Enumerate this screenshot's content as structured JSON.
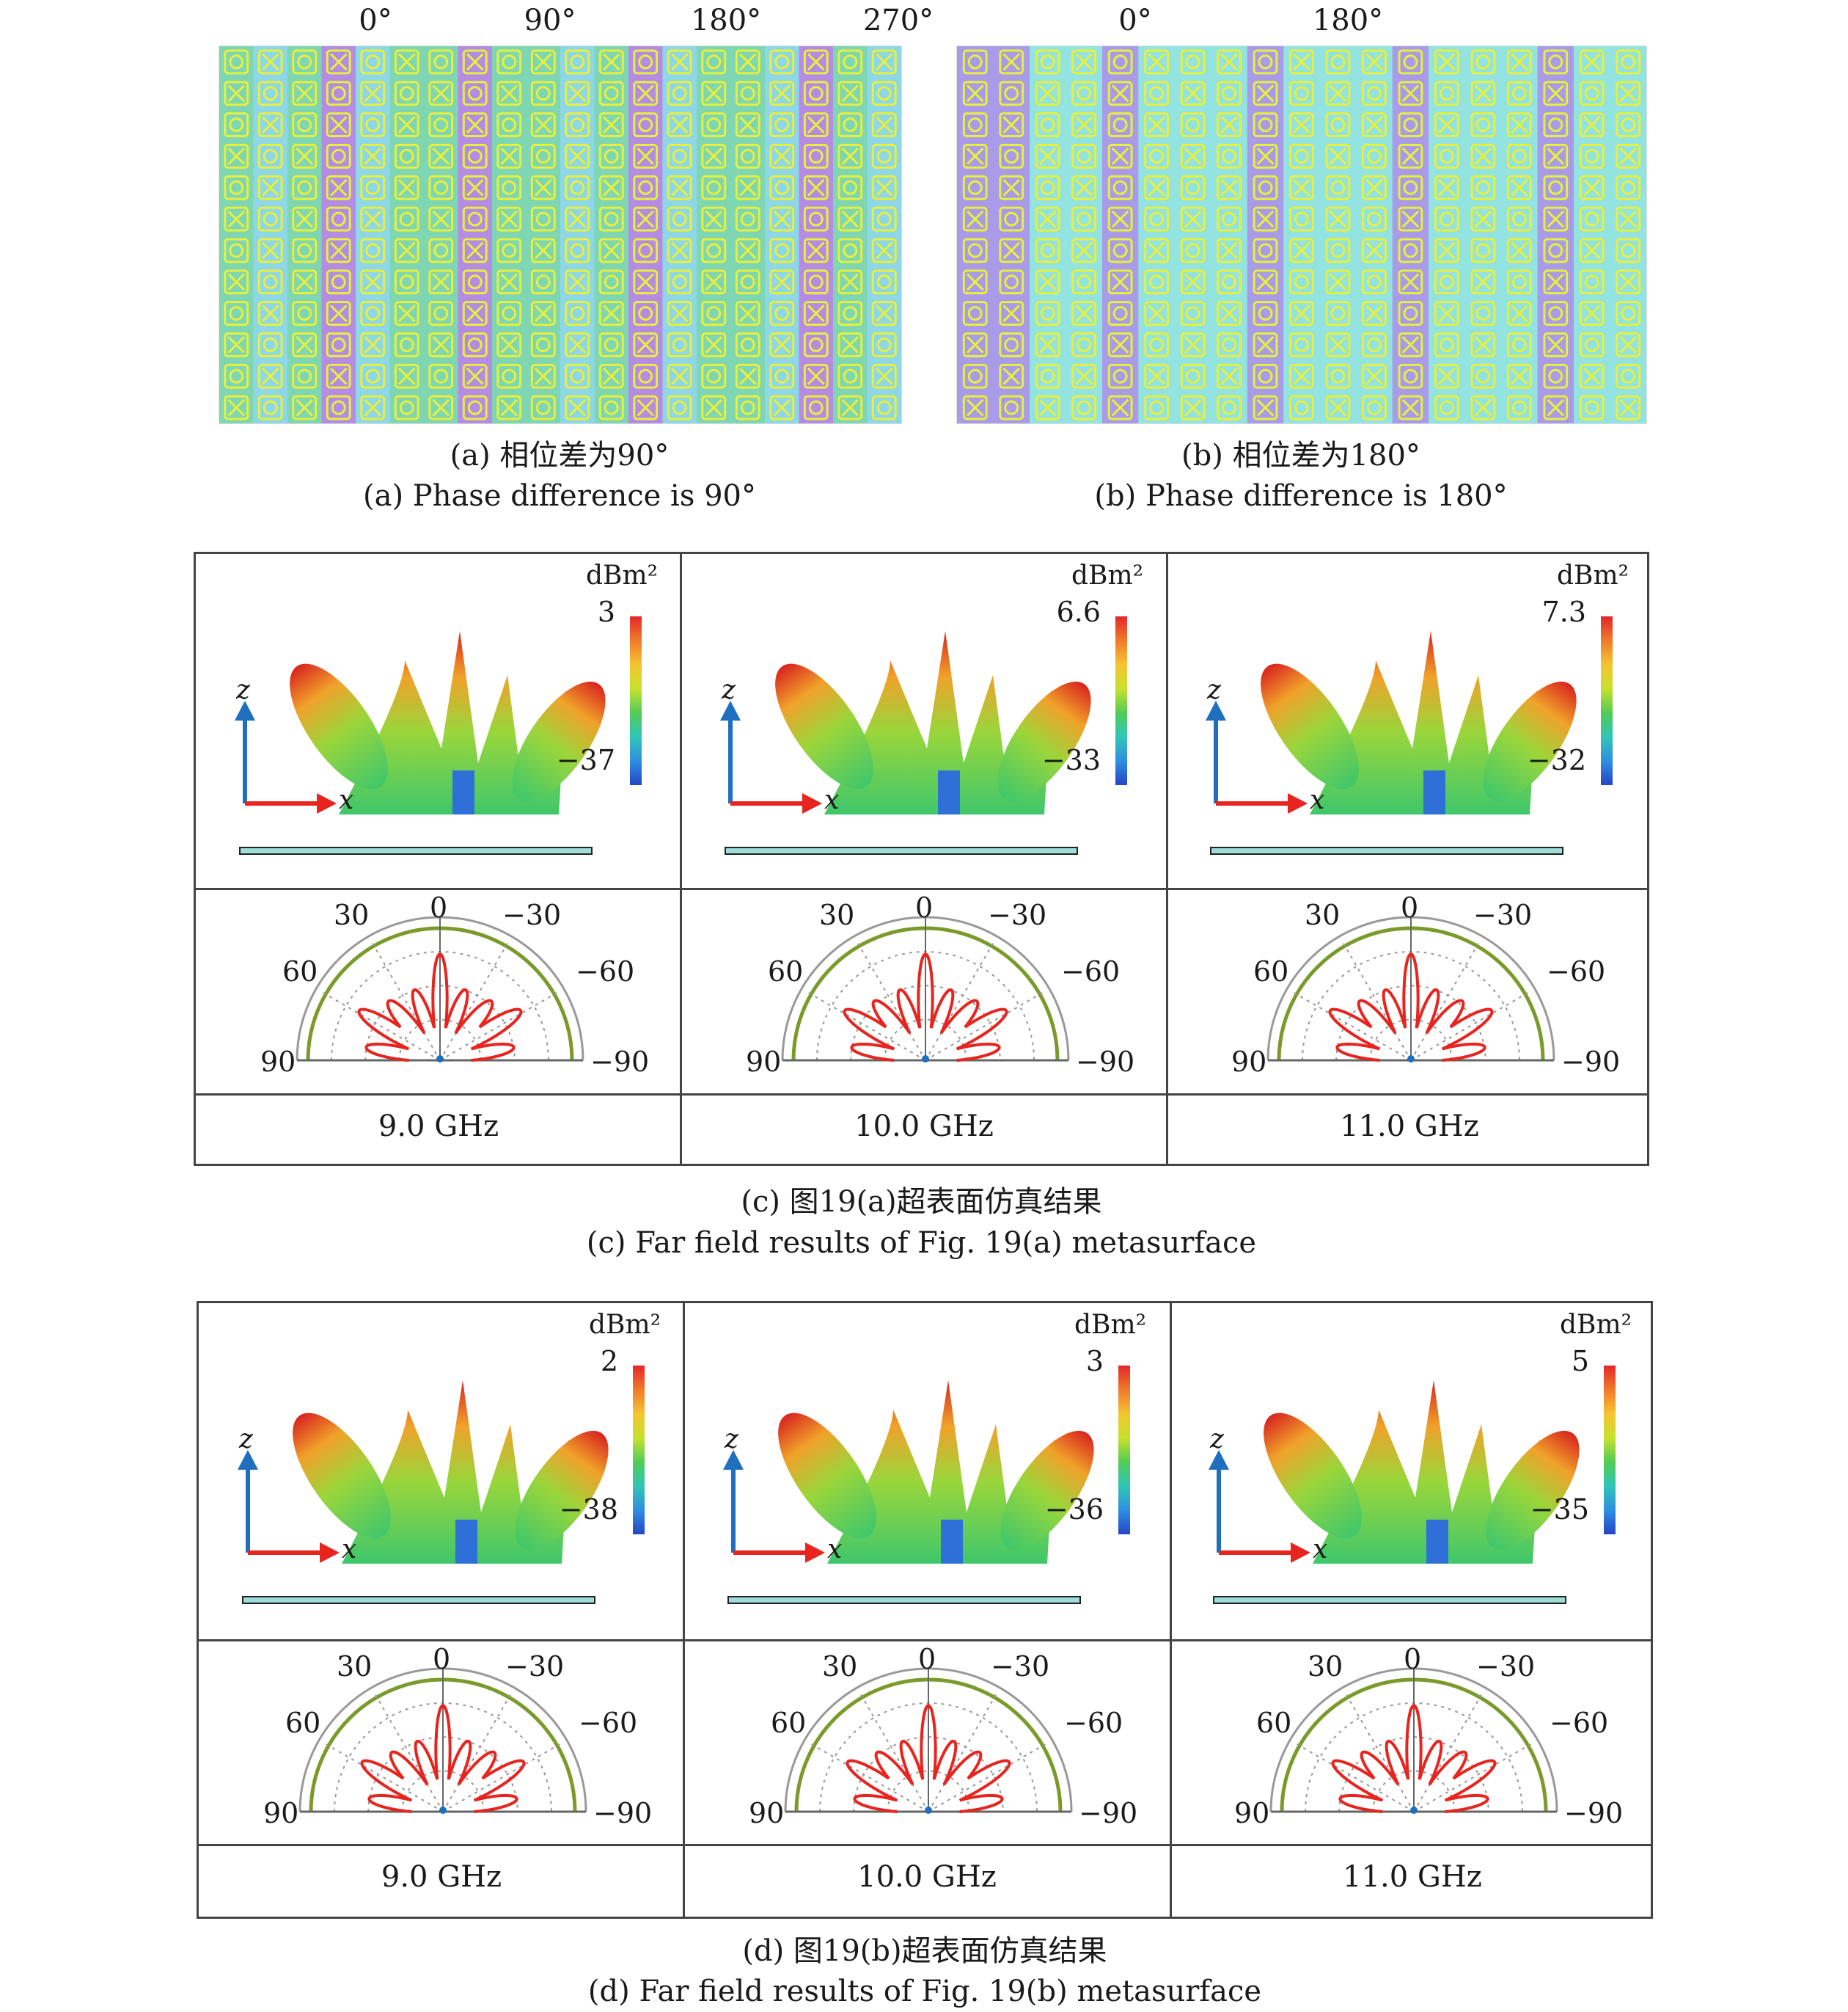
{
  "figure_a": {
    "phase_labels": [
      "0°",
      "90°",
      "180°",
      "270°"
    ],
    "caption_cn": "(a) 相位差为90°",
    "caption_en": "(a) Phase difference is 90°",
    "colors": {
      "background": "#7fd6b2",
      "stripe_purple": "#b58be3",
      "pattern": "#e8f03a",
      "cell_blue": "#8ed7e6"
    }
  },
  "figure_b": {
    "phase_labels": [
      "0°",
      "180°"
    ],
    "caption_cn": "(b) 相位差为180°",
    "caption_en": "(b) Phase difference is 180°",
    "colors": {
      "background": "#93e4e0",
      "stripe_purple": "#a99be8",
      "pattern": "#e8f03a"
    }
  },
  "figure_c": {
    "caption_cn": "(c) 图19(a)超表面仿真结果",
    "caption_en": "(c) Far field results of Fig. 19(a) metasurface",
    "panels": [
      {
        "frequency": "9.0 GHz",
        "unit": "dBm²",
        "scale_max": "3",
        "scale_min": "−37"
      },
      {
        "frequency": "10.0 GHz",
        "unit": "dBm²",
        "scale_max": "6.6",
        "scale_min": "−33"
      },
      {
        "frequency": "11.0 GHz",
        "unit": "dBm²",
        "scale_max": "7.3",
        "scale_min": "−32"
      }
    ]
  },
  "figure_d": {
    "caption_cn": "(d) 图19(b)超表面仿真结果",
    "caption_en": "(d) Far field results of Fig. 19(b) metasurface",
    "panels": [
      {
        "frequency": "9.0 GHz",
        "unit": "dBm²",
        "scale_max": "2",
        "scale_min": "−38"
      },
      {
        "frequency": "10.0 GHz",
        "unit": "dBm²",
        "scale_max": "3",
        "scale_min": "−36"
      },
      {
        "frequency": "11.0 GHz",
        "unit": "dBm²",
        "scale_max": "5",
        "scale_min": "−35"
      }
    ]
  },
  "axis_labels": {
    "z": "z",
    "x": "x"
  },
  "polar_labels": {
    "top": "0",
    "left30": "30",
    "right30": "−30",
    "left60": "60",
    "right60": "−60",
    "left90": "90",
    "right90": "−90"
  },
  "colors": {
    "pattern_red": "#e8241f",
    "outer_ring": "#7a9a2a",
    "axis_blue": "#1f6fbf",
    "axis_red": "#e8241f",
    "colorbar": [
      "#e5262a",
      "#f07a2a",
      "#f5c431",
      "#c8e12d",
      "#52cc55",
      "#2fc6b7",
      "#2e8fe0",
      "#2545c8"
    ]
  }
}
